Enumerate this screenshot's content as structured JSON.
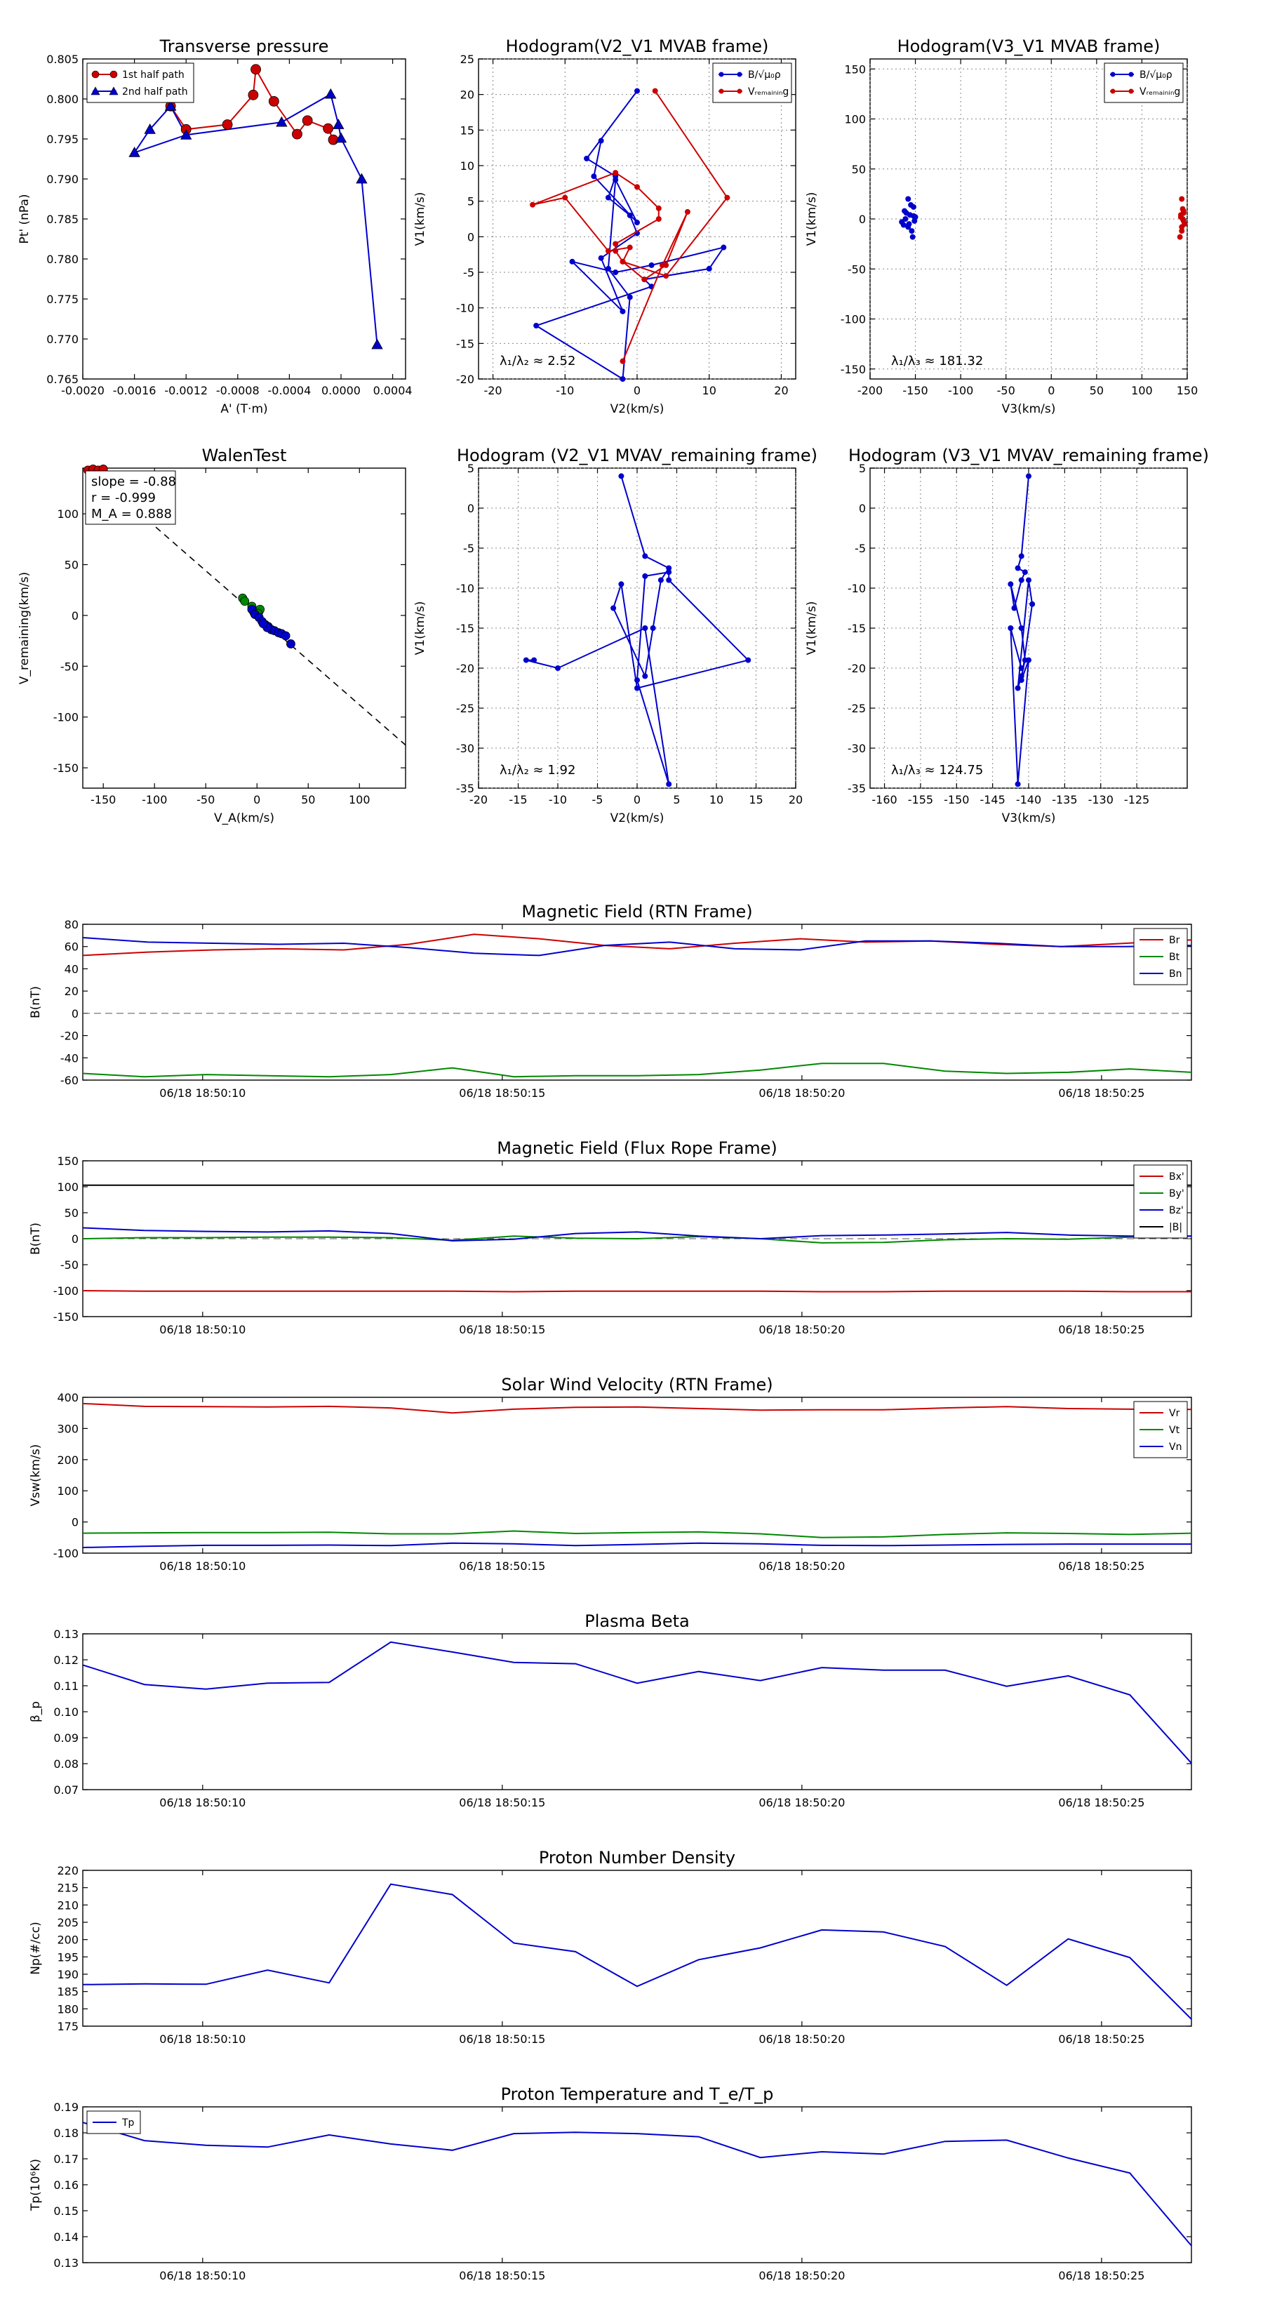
{
  "chart_data": [
    {
      "id": "tp",
      "type": "line",
      "title": "Transverse pressure",
      "xlabel": "A' (T·m)",
      "ylabel": "Pt' (nPa)",
      "xlim": [
        -0.002,
        0.0005
      ],
      "ylim": [
        0.765,
        0.805
      ],
      "xticks": [
        -0.002,
        -0.0016,
        -0.0012,
        -0.0008,
        -0.0004,
        0.0,
        0.0004
      ],
      "xtick_labels": [
        "-0.0020",
        "-0.0016",
        "-0.0012",
        "-0.0008",
        "-0.0004",
        "0.0000",
        "0.0004"
      ],
      "yticks": [
        0.765,
        0.77,
        0.775,
        0.78,
        0.785,
        0.79,
        0.795,
        0.8,
        0.805
      ],
      "ytick_labels": [
        "0.765",
        "0.770",
        "0.775",
        "0.780",
        "0.785",
        "0.790",
        "0.795",
        "0.800",
        "0.805"
      ],
      "grid": false,
      "legend": "top-left",
      "series": [
        {
          "name": "1st half path",
          "color": "#cc0000",
          "marker": "circle",
          "x": [
            -6e-05,
            -0.0001,
            -0.00026,
            -0.00034,
            -0.00052,
            -0.00066,
            -0.00068,
            -0.00088,
            -0.0012,
            -0.00132
          ],
          "y": [
            0.7949,
            0.7963,
            0.7973,
            0.7956,
            0.7997,
            0.8037,
            0.8005,
            0.7968,
            0.7962,
            0.7991
          ]
        },
        {
          "name": "2nd half path",
          "color": "#0000cc",
          "marker": "triangle",
          "x": [
            -0.00132,
            -0.0012,
            -0.00046,
            -8e-05,
            -2e-05,
            0.0,
            0.00016,
            0.00028
          ],
          "y": [
            0.7991,
            0.7955,
            0.7971,
            0.8006,
            0.7968,
            0.7951,
            0.79,
            0.7693
          ],
          "x_back": [
            -0.00132,
            -0.00148,
            -0.0016
          ],
          "y_back": [
            0.7991,
            0.7962,
            0.7933
          ]
        }
      ]
    },
    {
      "id": "h1",
      "type": "line",
      "title": "Hodogram(V2_V1 MVAB frame)",
      "xlabel": "V2(km/s)",
      "ylabel": "V1(km/s)",
      "xlim": [
        -22,
        22
      ],
      "ylim": [
        -20,
        25
      ],
      "xticks": [
        -20,
        -10,
        0,
        10,
        20
      ],
      "yticks": [
        -20,
        -15,
        -10,
        -5,
        0,
        5,
        10,
        15,
        20,
        25
      ],
      "grid": true,
      "legend": "top-right",
      "annotation": "λ₁/λ₂ ≈ 2.52",
      "series": [
        {
          "name": "B/√μ₀ρ",
          "color": "#0000cc",
          "x": [
            0,
            -7,
            -3,
            -4,
            -1,
            0,
            -5,
            -2,
            -9,
            -3,
            2,
            12,
            10,
            1,
            2,
            -14,
            -2,
            -1,
            -4,
            -3,
            0,
            -6,
            -5
          ],
          "y": [
            20.5,
            11,
            8.5,
            5.5,
            3,
            0.5,
            -3,
            -10.5,
            -3.5,
            -5,
            -4,
            -1.5,
            -4.5,
            -6,
            -7,
            -12.5,
            -20,
            -8.5,
            -4.5,
            8,
            2,
            8.5,
            13.5
          ]
        },
        {
          "name": "Vᵣₑₘₐᵢₙᵢₙg",
          "color": "#cc0000",
          "x": [
            2.5,
            12.5,
            4,
            -2,
            -1,
            -4,
            -10,
            -14.5,
            -3,
            0,
            3,
            3,
            -3,
            -3,
            -2,
            1,
            4,
            7,
            3.5,
            -2
          ],
          "y": [
            20.5,
            5.5,
            -5.5,
            -3.5,
            -1.5,
            -2,
            5.5,
            4.5,
            9,
            7,
            4,
            2.5,
            -1,
            -2,
            -3.5,
            -6,
            -4,
            3.5,
            -4,
            -17.5
          ]
        }
      ]
    },
    {
      "id": "h2",
      "type": "scatter",
      "title": "Hodogram(V3_V1 MVAB frame)",
      "xlabel": "V3(km/s)",
      "ylabel": "V1(km/s)",
      "xlim": [
        -200,
        150
      ],
      "ylim": [
        -160,
        160
      ],
      "xticks": [
        -200,
        -150,
        -100,
        -50,
        0,
        50,
        100,
        150
      ],
      "yticks": [
        -150,
        -100,
        -50,
        0,
        50,
        100,
        150
      ],
      "grid": true,
      "legend": "top-right",
      "annotation": "λ₁/λ₃ ≈ 181.32",
      "series": [
        {
          "name": "B/√μ₀ρ",
          "color": "#0000cc",
          "x": [
            -158,
            -152,
            -162,
            -156,
            -165,
            -150,
            -158,
            -154,
            -160,
            -153,
            -157,
            -161,
            -151,
            -155,
            -163,
            -152
          ],
          "y": [
            20,
            12,
            8,
            4,
            -3,
            2,
            -8,
            -12,
            6,
            -18,
            -5,
            0,
            -2,
            14,
            -6,
            3
          ]
        },
        {
          "name": "Vᵣₑₘₐᵢₙᵢₙg",
          "color": "#cc0000",
          "x": [
            144,
            146,
            143,
            145,
            147,
            144,
            142,
            146,
            145,
            143,
            144,
            146
          ],
          "y": [
            20,
            8,
            4,
            0,
            -5,
            -8,
            -18,
            -2,
            10,
            2,
            -12,
            6
          ]
        }
      ]
    },
    {
      "id": "walen",
      "type": "scatter",
      "title": "WalenTest",
      "xlabel": "V_A(km/s)",
      "ylabel": "V_remaining(km/s)",
      "xlim": [
        -170,
        145
      ],
      "ylim": [
        -170,
        145
      ],
      "xticks": [
        -150,
        -100,
        -50,
        0,
        50,
        100
      ],
      "yticks": [
        -150,
        -100,
        -50,
        0,
        50,
        100
      ],
      "grid": false,
      "annotation": [
        "slope = -0.88",
        "r = -0.999",
        "M_A = 0.888"
      ],
      "fit_line": {
        "slope": -0.88,
        "intercept": 0,
        "style": "dashed"
      },
      "series": [
        {
          "name": "green points",
          "color": "#008800",
          "x": [
            -14,
            -12,
            -5,
            2,
            3,
            -3,
            1
          ],
          "y": [
            17,
            14,
            9,
            4,
            6,
            3,
            2
          ]
        },
        {
          "name": "blue points",
          "color": "#0000cc",
          "x": [
            -5,
            -2,
            2,
            5,
            8,
            11,
            14,
            17,
            21,
            24,
            28,
            33,
            10,
            6
          ],
          "y": [
            6,
            1,
            -2,
            -6,
            -9,
            -11,
            -14,
            -15,
            -17,
            -18,
            -20,
            -28,
            -12,
            -8
          ]
        },
        {
          "name": "red points",
          "color": "#cc0000",
          "x": [
            -165,
            -160,
            -155,
            -150
          ],
          "y": [
            143,
            144,
            143,
            144
          ]
        }
      ]
    },
    {
      "id": "h3",
      "type": "line",
      "title": "Hodogram (V2_V1 MVAV_remaining frame)",
      "xlabel": "V2(km/s)",
      "ylabel": "V1(km/s)",
      "xlim": [
        -20,
        20
      ],
      "ylim": [
        -35,
        5
      ],
      "xticks": [
        -20,
        -15,
        -10,
        -5,
        0,
        5,
        10,
        15,
        20
      ],
      "yticks": [
        -35,
        -30,
        -25,
        -20,
        -15,
        -10,
        -5,
        0,
        5
      ],
      "grid": true,
      "annotation": "λ₁/λ₂ ≈ 1.92",
      "series": [
        {
          "name": "B",
          "color": "#0000cc",
          "x": [
            -2,
            1,
            4,
            3,
            2,
            1,
            -3,
            -2,
            0,
            14,
            4,
            4,
            1,
            0,
            4,
            1,
            -10,
            -14,
            -13
          ],
          "y": [
            4,
            -6,
            -7.5,
            -9,
            -15,
            -21,
            -12.5,
            -9.5,
            -22.5,
            -19,
            -9,
            -8,
            -8.5,
            -21.5,
            -34.5,
            -15,
            -20,
            -19,
            -19
          ]
        }
      ]
    },
    {
      "id": "h4",
      "type": "line",
      "title": "Hodogram (V3_V1 MVAV_remaining frame)",
      "xlabel": "V3(km/s)",
      "ylabel": "V1(km/s)",
      "xlim": [
        -162,
        -118
      ],
      "ylim": [
        -35,
        5
      ],
      "xticks": [
        -160,
        -155,
        -150,
        -145,
        -140,
        -135,
        -130,
        -125
      ],
      "yticks": [
        -35,
        -30,
        -25,
        -20,
        -15,
        -10,
        -5,
        0,
        5
      ],
      "grid": true,
      "annotation": "λ₁/λ₃ ≈ 124.75",
      "series": [
        {
          "name": "B",
          "color": "#0000cc",
          "x": [
            -140,
            -141,
            -141.5,
            -140.5,
            -141,
            -142,
            -142.5,
            -141,
            -140.5,
            -141,
            -141.5,
            -140,
            -139.5,
            -141,
            -140,
            -141.5,
            -142.5,
            -141
          ],
          "y": [
            4,
            -6,
            -7.5,
            -8,
            -9,
            -12.5,
            -9.5,
            -15,
            -19,
            -21,
            -22.5,
            -9,
            -12,
            -21.5,
            -19,
            -34.5,
            -15,
            -20
          ]
        }
      ]
    },
    {
      "id": "mag_rtn",
      "type": "line",
      "title": "Magnetic Field (RTN Frame)",
      "ylabel": "B(nT)",
      "ylim": [
        -60,
        80
      ],
      "yticks": [
        -60,
        -40,
        -20,
        0,
        20,
        40,
        60,
        80
      ],
      "xtick_labels": [
        "06/18 18:50:10",
        "06/18 18:50:15",
        "06/18 18:50:20",
        "06/18 18:50:25"
      ],
      "zero_line": true,
      "legend": "top-right",
      "series": [
        {
          "name": "Br",
          "color": "#cc0000",
          "values": [
            52,
            55,
            57,
            58,
            57,
            62,
            71,
            67,
            61,
            58,
            63,
            67,
            64,
            65,
            62,
            60,
            63,
            66
          ]
        },
        {
          "name": "Bt",
          "color": "#008800",
          "values": [
            -54,
            -57,
            -55,
            -56,
            -57,
            -55,
            -49,
            -57,
            -56,
            -56,
            -55,
            -51,
            -45,
            -45,
            -52,
            -54,
            -53,
            -50,
            -53
          ]
        },
        {
          "name": "Bn",
          "color": "#0000cc",
          "values": [
            68,
            64,
            63,
            62,
            63,
            59,
            54,
            52,
            61,
            64,
            58,
            57,
            65,
            65,
            63,
            60,
            60,
            61
          ]
        }
      ]
    },
    {
      "id": "mag_fr",
      "type": "line",
      "title": "Magnetic Field (Flux Rope Frame)",
      "ylabel": "B(nT)",
      "ylim": [
        -150,
        150
      ],
      "yticks": [
        -150,
        -100,
        -50,
        0,
        50,
        100,
        150
      ],
      "xtick_labels": [
        "06/18 18:50:10",
        "06/18 18:50:15",
        "06/18 18:50:20",
        "06/18 18:50:25"
      ],
      "zero_line": true,
      "legend": "top-right",
      "series": [
        {
          "name": "Bx'",
          "color": "#cc0000",
          "values": [
            -100,
            -101,
            -101,
            -101,
            -101,
            -101,
            -101,
            -102,
            -101,
            -101,
            -101,
            -101,
            -102,
            -102,
            -101,
            -101,
            -101,
            -102,
            -102
          ]
        },
        {
          "name": "By'",
          "color": "#008800",
          "values": [
            0,
            2,
            2,
            3,
            3,
            2,
            -3,
            5,
            1,
            0,
            4,
            0,
            -8,
            -7,
            -2,
            0,
            -1,
            3,
            5
          ]
        },
        {
          "name": "Bz'",
          "color": "#0000cc",
          "values": [
            21,
            16,
            14,
            13,
            15,
            10,
            -4,
            -1,
            10,
            13,
            5,
            0,
            6,
            7,
            9,
            12,
            7,
            5,
            5
          ]
        },
        {
          "name": "|B|",
          "color": "#000000",
          "values": [
            103,
            103,
            103,
            103,
            103,
            103,
            103,
            103,
            103,
            103,
            103,
            103,
            103,
            103,
            103,
            103,
            103,
            103,
            103
          ]
        }
      ]
    },
    {
      "id": "vel",
      "type": "line",
      "title": "Solar Wind Velocity (RTN Frame)",
      "ylabel": "Vsw(km/s)",
      "ylim": [
        -100,
        400
      ],
      "yticks": [
        -100,
        0,
        100,
        200,
        300,
        400
      ],
      "xtick_labels": [
        "06/18 18:50:10",
        "06/18 18:50:15",
        "06/18 18:50:20",
        "06/18 18:50:25"
      ],
      "legend": "top-right",
      "series": [
        {
          "name": "Vr",
          "color": "#cc0000",
          "values": [
            380,
            371,
            370,
            369,
            371,
            366,
            350,
            362,
            368,
            369,
            364,
            359,
            360,
            360,
            366,
            370,
            364,
            362,
            361
          ]
        },
        {
          "name": "Vt",
          "color": "#008800",
          "values": [
            -36,
            -35,
            -34,
            -34,
            -33,
            -38,
            -38,
            -29,
            -37,
            -34,
            -32,
            -38,
            -50,
            -48,
            -40,
            -35,
            -37,
            -40,
            -36
          ]
        },
        {
          "name": "Vn",
          "color": "#0000cc",
          "values": [
            -82,
            -78,
            -75,
            -75,
            -74,
            -76,
            -68,
            -70,
            -76,
            -72,
            -68,
            -70,
            -75,
            -76,
            -74,
            -72,
            -71,
            -71,
            -71
          ]
        }
      ]
    },
    {
      "id": "beta",
      "type": "line",
      "title": "Plasma Beta",
      "ylabel": "β_p",
      "ylim": [
        0.07,
        0.13
      ],
      "yticks": [
        0.07,
        0.08,
        0.09,
        0.1,
        0.11,
        0.12,
        0.13
      ],
      "ytick_labels": [
        "0.07",
        "0.08",
        "0.09",
        "0.10",
        "0.11",
        "0.12",
        "0.13"
      ],
      "xtick_labels": [
        "06/18 18:50:10",
        "06/18 18:50:15",
        "06/18 18:50:20",
        "06/18 18:50:25"
      ],
      "series": [
        {
          "name": "beta",
          "color": "#0000cc",
          "values": [
            0.118,
            0.1105,
            0.1087,
            0.111,
            0.1113,
            0.1268,
            0.123,
            0.119,
            0.1185,
            0.111,
            0.1155,
            0.112,
            0.117,
            0.116,
            0.116,
            0.1098,
            0.1138,
            0.1065,
            0.0802
          ]
        }
      ]
    },
    {
      "id": "np",
      "type": "line",
      "title": "Proton Number Density",
      "ylabel": "Np(#/cc)",
      "ylim": [
        175,
        220
      ],
      "yticks": [
        175,
        180,
        185,
        190,
        195,
        200,
        205,
        210,
        215,
        220
      ],
      "xtick_labels": [
        "06/18 18:50:10",
        "06/18 18:50:15",
        "06/18 18:50:20",
        "06/18 18:50:25"
      ],
      "series": [
        {
          "name": "Np",
          "color": "#0000cc",
          "values": [
            187,
            187.2,
            187.1,
            191.2,
            187.5,
            216,
            213,
            199,
            196.5,
            186.5,
            194.2,
            197.6,
            202.8,
            202.2,
            198,
            186.8,
            200.2,
            194.8,
            177
          ]
        }
      ]
    },
    {
      "id": "tp_temp",
      "type": "line",
      "title": "Proton Temperature and T_e/T_p",
      "ylabel": "Tp(10⁶K)",
      "ylim": [
        0.13,
        0.19
      ],
      "yticks": [
        0.13,
        0.14,
        0.15,
        0.16,
        0.17,
        0.18,
        0.19
      ],
      "ytick_labels": [
        "0.13",
        "0.14",
        "0.15",
        "0.16",
        "0.17",
        "0.18",
        "0.19"
      ],
      "xtick_labels": [
        "06/18 18:50:10",
        "06/18 18:50:15",
        "06/18 18:50:20",
        "06/18 18:50:25"
      ],
      "legend": "top-left",
      "series": [
        {
          "name": "Tp",
          "color": "#0000cc",
          "values": [
            0.184,
            0.177,
            0.1752,
            0.1745,
            0.1792,
            0.1757,
            0.1733,
            0.1797,
            0.1802,
            0.1797,
            0.1785,
            0.1705,
            0.1727,
            0.1718,
            0.1767,
            0.1772,
            0.1703,
            0.1645,
            0.1365
          ]
        }
      ]
    }
  ]
}
